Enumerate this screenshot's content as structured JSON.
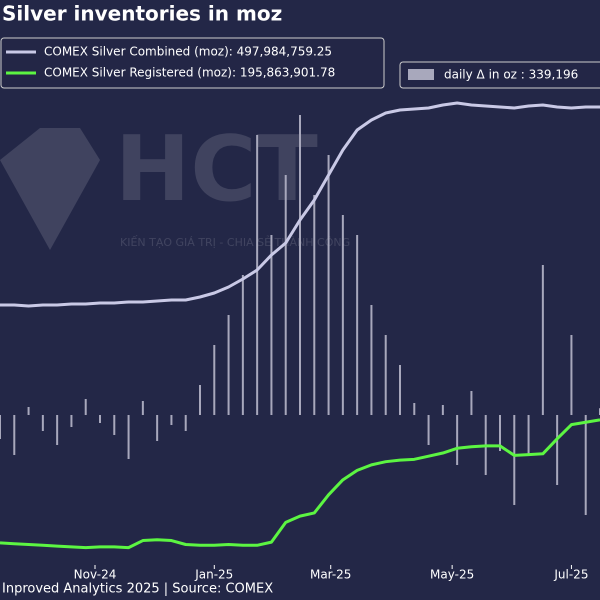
{
  "chart_data": {
    "type": "combo",
    "title": "Silver inventories in moz",
    "watermark": {
      "text": "HCT",
      "tagline": "KIẾN TẠO GIÁ TRỊ - CHIA SẺ THÀNH CÔNG"
    },
    "source": "Inproved Analytics 2025 | Source: COMEX",
    "x": [
      2024.7,
      2024.72,
      2024.74,
      2024.76,
      2024.78,
      2024.8,
      2024.82,
      2024.84,
      2024.86,
      2024.88,
      2024.9,
      2024.92,
      2024.94,
      2024.96,
      2024.98,
      2025.0,
      2025.02,
      2025.04,
      2025.06,
      2025.08,
      2025.1,
      2025.12,
      2025.14,
      2025.16,
      2025.18,
      2025.2,
      2025.22,
      2025.24,
      2025.26,
      2025.28,
      2025.3,
      2025.32,
      2025.34,
      2025.36,
      2025.38,
      2025.4,
      2025.42,
      2025.44,
      2025.46,
      2025.48,
      2025.5,
      2025.52,
      2025.54
    ],
    "xlim": [
      2024.7,
      2025.54
    ],
    "xticks": [
      {
        "value": 2024.833,
        "label": "Nov-24"
      },
      {
        "value": 2025.0,
        "label": "Jan-25"
      },
      {
        "value": 2025.163,
        "label": "Mar-25"
      },
      {
        "value": 2025.333,
        "label": "May-25"
      },
      {
        "value": 2025.5,
        "label": "Jul-25"
      }
    ],
    "ylim": [
      40,
      510
    ],
    "y2lim": [
      12,
      608
    ],
    "y3lim": [
      -7500000,
      16000000
    ],
    "series": [
      {
        "name": "COMEX Silver Combined (moz): 497,984,759.25",
        "type": "line",
        "color": "#c9c9e6",
        "values": [
          300,
          300,
          299,
          300,
          300,
          301,
          301,
          302,
          302,
          303,
          303,
          304,
          305,
          305,
          308,
          312,
          318,
          326,
          335,
          350,
          362,
          385,
          405,
          430,
          455,
          475,
          485,
          492,
          495,
          496,
          497,
          500,
          502,
          500,
          499,
          498,
          497,
          499,
          500,
          498,
          497,
          498,
          498
        ]
      },
      {
        "name": "COMEX Silver Registered (moz): 195,863,901.78",
        "type": "line",
        "axis": "y2",
        "color": "#5cf542",
        "values": [
          40,
          39,
          38,
          37,
          36,
          35,
          34,
          35,
          35,
          34,
          43,
          44,
          43,
          38,
          37,
          37,
          38,
          37,
          37,
          41,
          66,
          74,
          78,
          101,
          120,
          132,
          139,
          143,
          145,
          146,
          150,
          154,
          160,
          162,
          163,
          163,
          151,
          152,
          153,
          172,
          190,
          193,
          196
        ]
      },
      {
        "name": "daily Δ in oz : 339,196",
        "type": "bar",
        "axis": "y3",
        "color": "#a8a8bc",
        "values": [
          -1200000,
          -2000000,
          400000,
          -800000,
          -1500000,
          -600000,
          800000,
          -400000,
          -1000000,
          -2200000,
          700000,
          -1300000,
          -500000,
          -800000,
          1500000,
          3500000,
          5000000,
          7000000,
          14000000,
          9000000,
          12000000,
          15000000,
          11000000,
          13000000,
          10000000,
          9000000,
          5500000,
          4000000,
          2500000,
          600000,
          -1500000,
          500000,
          -2500000,
          1200000,
          -3000000,
          -1800000,
          -4500000,
          -2000000,
          7500000,
          -3500000,
          4000000,
          -5000000,
          339196
        ]
      }
    ]
  }
}
